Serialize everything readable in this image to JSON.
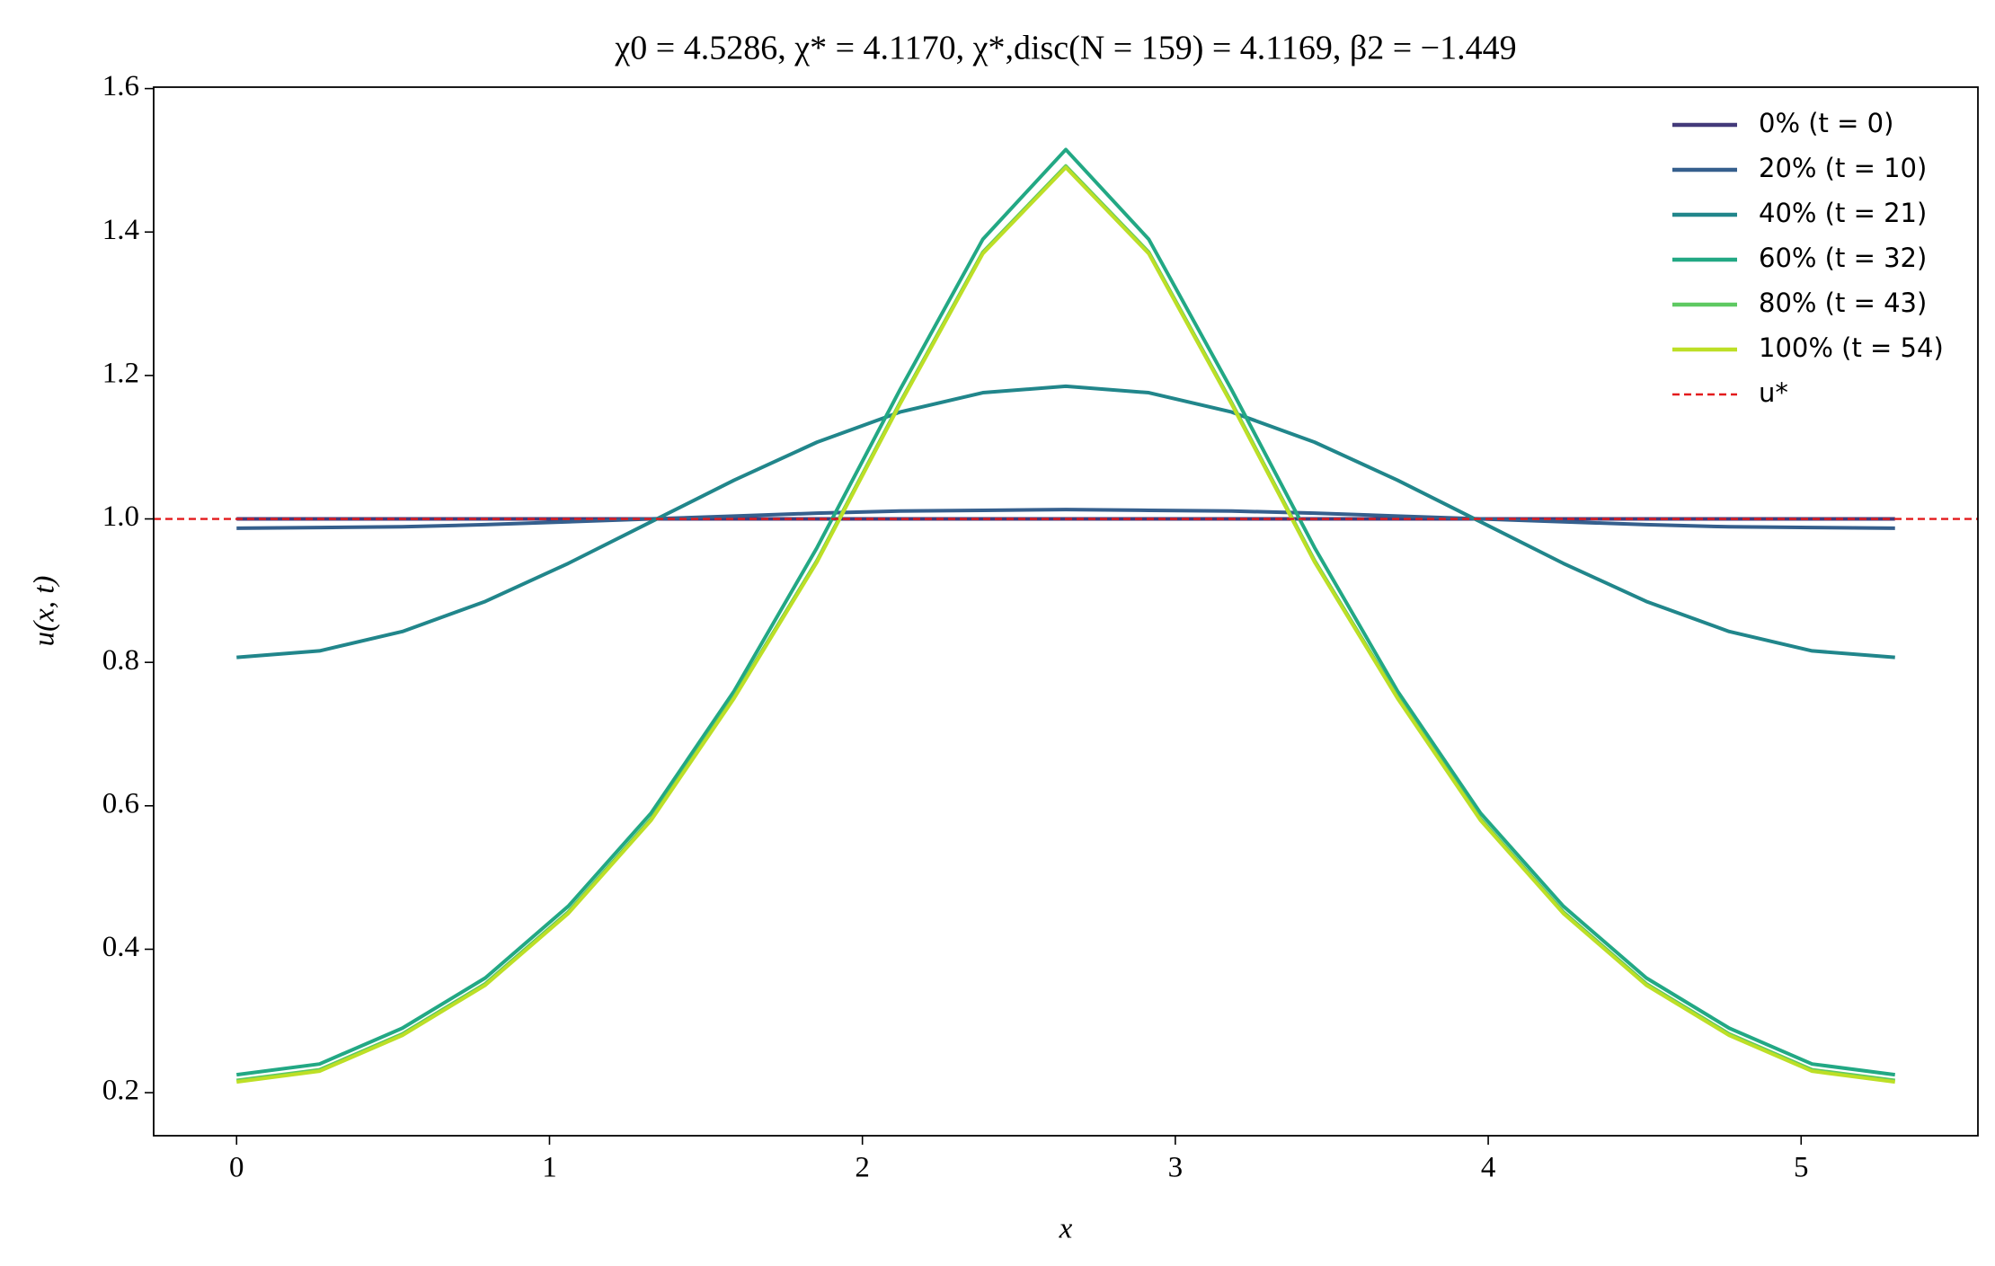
{
  "chart_data": {
    "type": "line",
    "title": "χ0 = 4.5286,  χ* = 4.1170,  χ*,disc(N = 159) = 4.1169,  β2 = −1.449",
    "x_label": "x",
    "y_label": "u(x, t)",
    "x": [
      0,
      0.265,
      0.53,
      0.795,
      1.06,
      1.325,
      1.59,
      1.855,
      2.12,
      2.385,
      2.65,
      2.915,
      3.18,
      3.445,
      3.71,
      3.975,
      4.24,
      4.505,
      4.77,
      5.035,
      5.3
    ],
    "series": [
      {
        "name": "0% (t = 0)",
        "color": "#433a7a",
        "values": [
          1,
          1,
          1,
          1,
          1,
          1,
          1,
          1,
          1,
          1,
          1,
          1,
          1,
          1,
          1,
          1,
          1,
          1,
          1,
          1,
          1
        ]
      },
      {
        "name": "20% (t = 10)",
        "color": "#355f8d",
        "values": [
          0.987,
          0.988,
          0.989,
          0.992,
          0.996,
          1.0,
          1.004,
          1.008,
          1.011,
          1.012,
          1.013,
          1.012,
          1.011,
          1.008,
          1.004,
          1.0,
          0.996,
          0.992,
          0.989,
          0.988,
          0.987
        ]
      },
      {
        "name": "40% (t = 21)",
        "color": "#21868b",
        "values": [
          0.807,
          0.816,
          0.843,
          0.885,
          0.938,
          0.996,
          1.054,
          1.107,
          1.149,
          1.176,
          1.185,
          1.176,
          1.149,
          1.107,
          1.054,
          0.996,
          0.938,
          0.885,
          0.843,
          0.816,
          0.807
        ]
      },
      {
        "name": "60% (t = 32)",
        "color": "#22a884",
        "values": [
          0.225,
          0.24,
          0.29,
          0.36,
          0.46,
          0.59,
          0.76,
          0.96,
          1.18,
          1.39,
          1.515,
          1.39,
          1.18,
          0.96,
          0.76,
          0.59,
          0.46,
          0.36,
          0.29,
          0.24,
          0.225
        ]
      },
      {
        "name": "80% (t = 43)",
        "color": "#5ec962",
        "values": [
          0.217,
          0.232,
          0.282,
          0.352,
          0.452,
          0.582,
          0.752,
          0.942,
          1.162,
          1.372,
          1.492,
          1.372,
          1.162,
          0.942,
          0.752,
          0.582,
          0.452,
          0.352,
          0.282,
          0.232,
          0.217
        ]
      },
      {
        "name": "100% (t = 54)",
        "color": "#bddf26",
        "values": [
          0.215,
          0.23,
          0.28,
          0.35,
          0.45,
          0.58,
          0.75,
          0.94,
          1.16,
          1.37,
          1.49,
          1.37,
          1.16,
          0.94,
          0.75,
          0.58,
          0.45,
          0.35,
          0.28,
          0.23,
          0.215
        ]
      }
    ],
    "reference": {
      "name": "u*",
      "value": 1,
      "color": "#e31a1c"
    },
    "xlim": [
      -0.265,
      5.565
    ],
    "ylim": [
      0.14,
      1.602
    ],
    "xticks": [
      0,
      1,
      2,
      3,
      4,
      5
    ],
    "yticks": [
      0.2,
      0.4,
      0.6,
      0.8,
      {
        "value": 1,
        "label": "1.0"
      },
      1.2,
      1.4,
      1.6
    ],
    "grid": false,
    "legend": "upper right"
  }
}
